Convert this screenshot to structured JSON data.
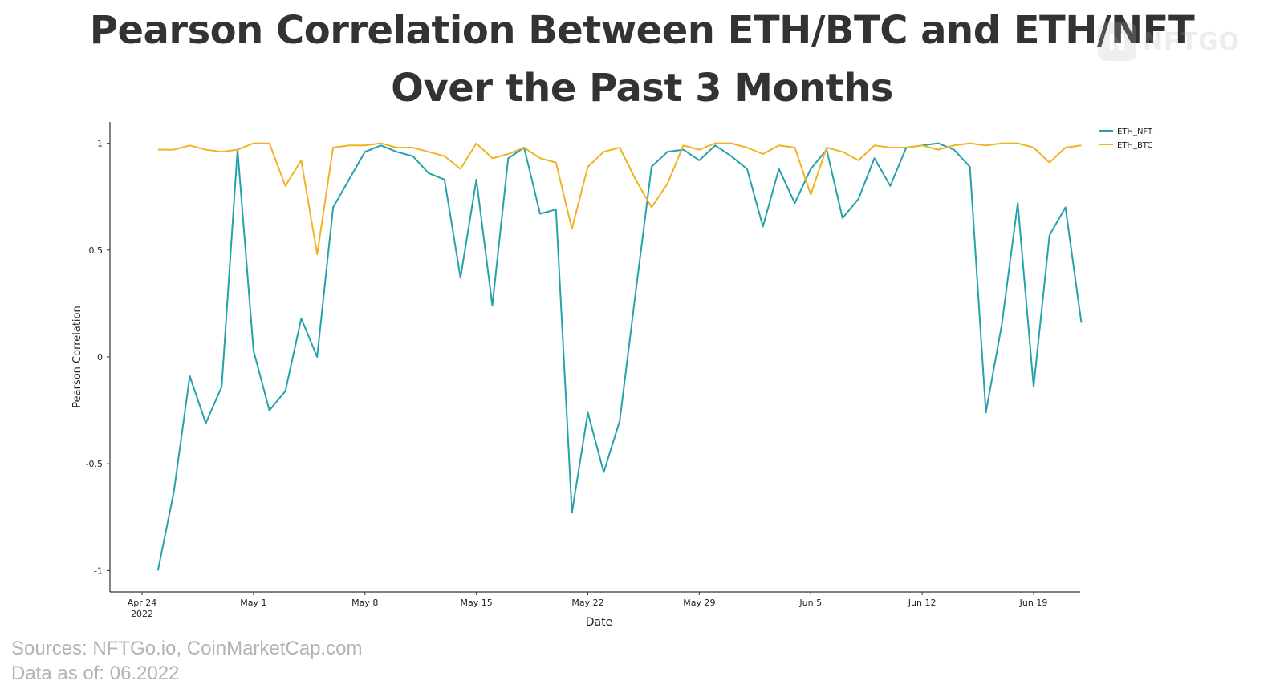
{
  "title_line1": "Pearson Correlation Between ETH/BTC and ETH/NFT",
  "title_line2": "Over the Past 3 Months",
  "logo_text": "NFTGO",
  "sources": "Sources: NFTGo.io, CoinMarketCap.com",
  "data_as_of": "Data as of: 06.2022",
  "chart_data": {
    "type": "line",
    "title": "Pearson Correlation Between ETH/BTC and ETH/NFT Over the Past 3 Months",
    "xlabel": "Date",
    "ylabel": "Pearson Correlation",
    "x_start": "2022-04-24",
    "x_end": "2022-06-22",
    "ylim": [
      -1.1,
      1.1
    ],
    "y_ticks": [
      {
        "value": 1,
        "label": "1"
      },
      {
        "value": 0.5,
        "label": "0.5"
      },
      {
        "value": 0,
        "label": "0"
      },
      {
        "value": -0.5,
        "label": "-0.5"
      },
      {
        "value": -1,
        "label": "-1"
      }
    ],
    "x_ticks": [
      {
        "date": "2022-04-24",
        "label": "Apr 24",
        "sublabel": "2022"
      },
      {
        "date": "2022-05-01",
        "label": "May 1",
        "sublabel": ""
      },
      {
        "date": "2022-05-08",
        "label": "May 8",
        "sublabel": ""
      },
      {
        "date": "2022-05-15",
        "label": "May 15",
        "sublabel": ""
      },
      {
        "date": "2022-05-22",
        "label": "May 22",
        "sublabel": ""
      },
      {
        "date": "2022-05-29",
        "label": "May 29",
        "sublabel": ""
      },
      {
        "date": "2022-06-05",
        "label": "Jun 5",
        "sublabel": ""
      },
      {
        "date": "2022-06-12",
        "label": "Jun 12",
        "sublabel": ""
      },
      {
        "date": "2022-06-19",
        "label": "Jun 19",
        "sublabel": ""
      }
    ],
    "grid": false,
    "legend_position": "top-right",
    "x": [
      "2022-04-25",
      "2022-04-26",
      "2022-04-27",
      "2022-04-28",
      "2022-04-29",
      "2022-04-30",
      "2022-05-01",
      "2022-05-02",
      "2022-05-03",
      "2022-05-04",
      "2022-05-05",
      "2022-05-06",
      "2022-05-07",
      "2022-05-08",
      "2022-05-09",
      "2022-05-10",
      "2022-05-11",
      "2022-05-12",
      "2022-05-13",
      "2022-05-14",
      "2022-05-15",
      "2022-05-16",
      "2022-05-17",
      "2022-05-18",
      "2022-05-19",
      "2022-05-20",
      "2022-05-21",
      "2022-05-22",
      "2022-05-23",
      "2022-05-24",
      "2022-05-25",
      "2022-05-26",
      "2022-05-27",
      "2022-05-28",
      "2022-05-29",
      "2022-05-30",
      "2022-05-31",
      "2022-06-01",
      "2022-06-02",
      "2022-06-03",
      "2022-06-04",
      "2022-06-05",
      "2022-06-06",
      "2022-06-07",
      "2022-06-08",
      "2022-06-09",
      "2022-06-10",
      "2022-06-11",
      "2022-06-12",
      "2022-06-13",
      "2022-06-14",
      "2022-06-15",
      "2022-06-16",
      "2022-06-17",
      "2022-06-18",
      "2022-06-19",
      "2022-06-20",
      "2022-06-21",
      "2022-06-22"
    ],
    "series": [
      {
        "name": "ETH_NFT",
        "color": "#24a2ab",
        "values": [
          -1.0,
          -0.63,
          -0.09,
          -0.31,
          -0.14,
          0.97,
          0.03,
          -0.25,
          -0.16,
          0.18,
          0.0,
          0.7,
          0.83,
          0.96,
          0.99,
          0.96,
          0.94,
          0.86,
          0.83,
          0.37,
          0.83,
          0.24,
          0.93,
          0.98,
          0.67,
          0.69,
          -0.73,
          -0.26,
          -0.54,
          -0.3,
          0.3,
          0.89,
          0.96,
          0.97,
          0.92,
          0.99,
          0.94,
          0.88,
          0.61,
          0.88,
          0.72,
          0.88,
          0.97,
          0.65,
          0.74,
          0.93,
          0.8,
          0.98,
          0.99,
          1.0,
          0.97,
          0.89,
          -0.26,
          0.15,
          0.72,
          -0.14,
          0.57,
          0.7,
          0.16
        ]
      },
      {
        "name": "ETH_BTC",
        "color": "#f0b323",
        "values": [
          0.97,
          0.97,
          0.99,
          0.97,
          0.96,
          0.97,
          1.0,
          1.0,
          0.8,
          0.92,
          0.48,
          0.98,
          0.99,
          0.99,
          1.0,
          0.98,
          0.98,
          0.96,
          0.94,
          0.88,
          1.0,
          0.93,
          0.95,
          0.98,
          0.93,
          0.91,
          0.6,
          0.89,
          0.96,
          0.98,
          0.83,
          0.7,
          0.81,
          0.99,
          0.97,
          1.0,
          1.0,
          0.98,
          0.95,
          0.99,
          0.98,
          0.76,
          0.98,
          0.96,
          0.92,
          0.99,
          0.98,
          0.98,
          0.99,
          0.97,
          0.99,
          1.0,
          0.99,
          1.0,
          1.0,
          0.98,
          0.91,
          0.98,
          0.99
        ]
      }
    ]
  }
}
